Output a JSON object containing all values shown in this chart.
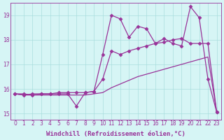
{
  "xlabel": "Windchill (Refroidissement éolien,°C)",
  "background_color": "#d6f5f5",
  "line_color": "#993399",
  "xlim": [
    -0.5,
    23.5
  ],
  "ylim": [
    14.75,
    19.5
  ],
  "x_ticks": [
    0,
    1,
    2,
    3,
    4,
    5,
    6,
    7,
    8,
    9,
    10,
    11,
    12,
    13,
    14,
    15,
    16,
    17,
    18,
    19,
    20,
    21,
    22,
    23
  ],
  "y_ticks": [
    15,
    16,
    17,
    18,
    19
  ],
  "series1_x": [
    0,
    1,
    2,
    3,
    4,
    5,
    6,
    7,
    8,
    9,
    10,
    11,
    12,
    13,
    14,
    15,
    16,
    17,
    18,
    19,
    20,
    21,
    22,
    23
  ],
  "series1_y": [
    15.8,
    15.8,
    15.75,
    15.8,
    15.8,
    15.8,
    15.8,
    15.3,
    15.85,
    15.9,
    17.4,
    19.0,
    18.85,
    18.1,
    18.55,
    18.45,
    17.85,
    18.05,
    17.85,
    17.75,
    19.35,
    18.9,
    16.4,
    15.05
  ],
  "series2_x": [
    0,
    1,
    2,
    3,
    4,
    5,
    6,
    7,
    8,
    9,
    10,
    11,
    12,
    13,
    14,
    15,
    16,
    17,
    18,
    19,
    20,
    21,
    22,
    23
  ],
  "series2_y": [
    15.8,
    15.75,
    15.8,
    15.8,
    15.8,
    15.85,
    15.85,
    15.85,
    15.85,
    15.9,
    16.4,
    17.55,
    17.4,
    17.55,
    17.65,
    17.75,
    17.85,
    17.9,
    18.0,
    18.05,
    17.85,
    17.85,
    17.85,
    15.05
  ],
  "series3_x": [
    0,
    1,
    2,
    3,
    4,
    5,
    6,
    7,
    8,
    9,
    10,
    11,
    12,
    13,
    14,
    15,
    16,
    17,
    18,
    19,
    20,
    21,
    22,
    23
  ],
  "series3_y": [
    15.8,
    15.75,
    15.75,
    15.75,
    15.75,
    15.75,
    15.75,
    15.75,
    15.75,
    15.8,
    15.85,
    16.05,
    16.2,
    16.35,
    16.5,
    16.6,
    16.7,
    16.8,
    16.9,
    17.0,
    17.1,
    17.2,
    17.3,
    15.05
  ],
  "marker": "D",
  "markersize": 2.5,
  "linewidth": 0.9,
  "grid_color": "#aadddd",
  "tick_fontsize": 5.5,
  "label_fontsize": 6.5
}
